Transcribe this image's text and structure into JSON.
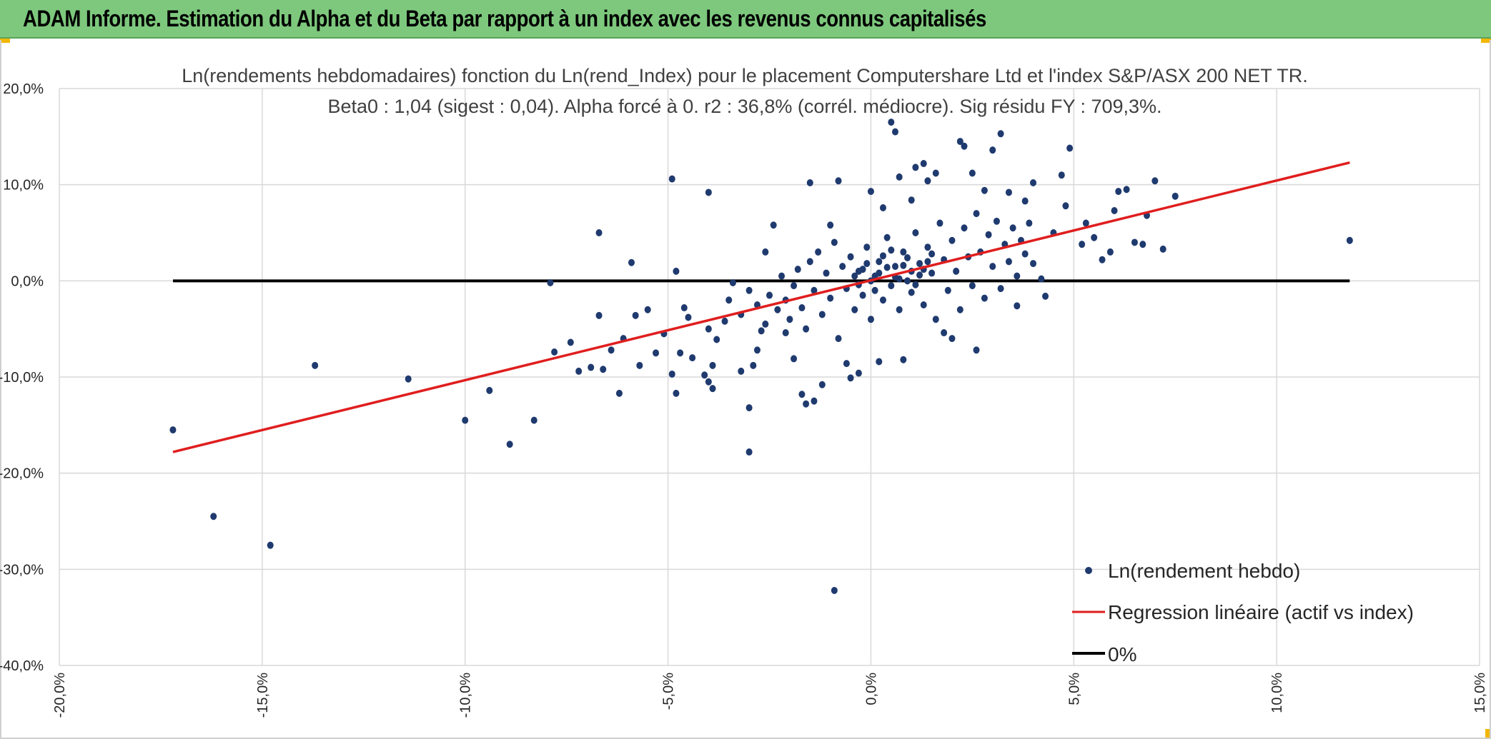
{
  "header": {
    "title": "ADAM Informe. Estimation du Alpha et du Beta par rapport à un index avec les revenus connus capitalisés"
  },
  "colors": {
    "banner": "#7dc87d",
    "points": "#1f3a6e",
    "regression": "#e01e1e",
    "zero_line": "#000000",
    "grid": "#d9d9d9"
  },
  "chart_data": {
    "type": "scatter",
    "title": "Ln(rendements hebdomadaires) fonction du Ln(rend_Index) pour le placement Computershare Ltd et l'index S&P/ASX 200 NET TR.",
    "subtitle": "Beta0 : 1,04 (sigest : 0,04). Alpha forcé à 0. r2 : 36,8% (corrél. médiocre). Sig résidu FY : 709,3%.",
    "xlabel": "",
    "ylabel": "",
    "xlim": [
      -0.2,
      0.15
    ],
    "ylim": [
      -0.4,
      0.2
    ],
    "x_ticks": [
      -0.2,
      -0.15,
      -0.1,
      -0.05,
      0.0,
      0.05,
      0.1,
      0.15
    ],
    "x_tick_labels": [
      "-20,0%",
      "-15,0%",
      "-10,0%",
      "-5,0%",
      "0,0%",
      "5,0%",
      "10,0%",
      "15,0%"
    ],
    "y_ticks": [
      -0.4,
      -0.3,
      -0.2,
      -0.1,
      0.0,
      0.1,
      0.2
    ],
    "y_tick_labels": [
      "-40,0%",
      "-30,0%",
      "-20,0%",
      "-10,0%",
      "0,0%",
      "10,0%",
      "20,0%"
    ],
    "grid": true,
    "legend_position": "bottom-right",
    "series": [
      {
        "name": "Ln(rendement hebdo)",
        "type": "scatter",
        "points": [
          [
            -0.172,
            -0.155
          ],
          [
            -0.162,
            -0.245
          ],
          [
            -0.148,
            -0.275
          ],
          [
            -0.137,
            -0.088
          ],
          [
            -0.114,
            -0.102
          ],
          [
            -0.1,
            -0.145
          ],
          [
            -0.094,
            -0.114
          ],
          [
            -0.089,
            -0.17
          ],
          [
            -0.083,
            -0.145
          ],
          [
            -0.079,
            -0.002
          ],
          [
            -0.078,
            -0.074
          ],
          [
            -0.074,
            -0.064
          ],
          [
            -0.072,
            -0.094
          ],
          [
            -0.069,
            -0.09
          ],
          [
            -0.067,
            0.05
          ],
          [
            -0.067,
            -0.036
          ],
          [
            -0.066,
            -0.092
          ],
          [
            -0.064,
            -0.072
          ],
          [
            -0.062,
            -0.117
          ],
          [
            -0.061,
            -0.06
          ],
          [
            -0.059,
            0.019
          ],
          [
            -0.058,
            -0.036
          ],
          [
            -0.057,
            -0.088
          ],
          [
            -0.055,
            -0.03
          ],
          [
            -0.053,
            -0.075
          ],
          [
            -0.051,
            -0.055
          ],
          [
            -0.049,
            -0.097
          ],
          [
            -0.048,
            0.01
          ],
          [
            -0.047,
            -0.075
          ],
          [
            -0.046,
            -0.028
          ],
          [
            -0.045,
            -0.038
          ],
          [
            -0.044,
            -0.08
          ],
          [
            -0.049,
            0.106
          ],
          [
            -0.048,
            -0.117
          ],
          [
            -0.041,
            -0.098
          ],
          [
            -0.04,
            -0.05
          ],
          [
            -0.039,
            -0.088
          ],
          [
            -0.038,
            -0.061
          ],
          [
            -0.036,
            -0.042
          ],
          [
            -0.034,
            -0.002
          ],
          [
            -0.04,
            0.092
          ],
          [
            -0.04,
            -0.105
          ],
          [
            -0.039,
            -0.112
          ],
          [
            -0.032,
            -0.094
          ],
          [
            -0.03,
            -0.132
          ],
          [
            -0.03,
            -0.178
          ],
          [
            -0.029,
            -0.088
          ],
          [
            -0.028,
            -0.072
          ],
          [
            -0.027,
            -0.052
          ],
          [
            -0.026,
            0.03
          ],
          [
            -0.024,
            0.058
          ],
          [
            -0.021,
            -0.054
          ],
          [
            -0.019,
            -0.081
          ],
          [
            -0.017,
            -0.118
          ],
          [
            -0.016,
            -0.128
          ],
          [
            -0.015,
            0.102
          ],
          [
            -0.014,
            -0.125
          ],
          [
            -0.012,
            -0.108
          ],
          [
            -0.01,
            0.058
          ],
          [
            -0.008,
            0.104
          ],
          [
            -0.006,
            -0.086
          ],
          [
            -0.005,
            -0.101
          ],
          [
            -0.009,
            -0.322
          ],
          [
            -0.003,
            -0.096
          ],
          [
            0.0,
            0.093
          ],
          [
            0.002,
            -0.084
          ],
          [
            0.003,
            0.076
          ],
          [
            0.005,
            0.165
          ],
          [
            0.006,
            0.155
          ],
          [
            0.007,
            0.108
          ],
          [
            0.008,
            -0.082
          ],
          [
            0.01,
            0.084
          ],
          [
            0.011,
            0.118
          ],
          [
            0.013,
            0.122
          ],
          [
            0.014,
            0.104
          ],
          [
            0.016,
            0.112
          ],
          [
            0.018,
            -0.054
          ],
          [
            0.02,
            -0.06
          ],
          [
            0.022,
            0.145
          ],
          [
            0.023,
            0.14
          ],
          [
            0.025,
            0.112
          ],
          [
            0.026,
            -0.072
          ],
          [
            0.028,
            0.094
          ],
          [
            0.03,
            0.136
          ],
          [
            0.032,
            0.153
          ],
          [
            0.034,
            0.092
          ],
          [
            0.036,
            -0.026
          ],
          [
            0.038,
            0.083
          ],
          [
            0.04,
            0.102
          ],
          [
            0.042,
            0.002
          ],
          [
            0.043,
            -0.016
          ],
          [
            0.045,
            0.05
          ],
          [
            0.047,
            0.11
          ],
          [
            0.048,
            0.078
          ],
          [
            0.049,
            0.138
          ],
          [
            0.052,
            0.038
          ],
          [
            0.053,
            0.06
          ],
          [
            0.055,
            0.045
          ],
          [
            0.057,
            0.022
          ],
          [
            0.059,
            0.03
          ],
          [
            0.06,
            0.073
          ],
          [
            0.061,
            0.093
          ],
          [
            0.063,
            0.095
          ],
          [
            0.065,
            0.04
          ],
          [
            0.067,
            0.038
          ],
          [
            0.068,
            0.068
          ],
          [
            0.07,
            0.104
          ],
          [
            0.072,
            0.033
          ],
          [
            0.075,
            0.088
          ],
          [
            0.118,
            0.042
          ],
          [
            -0.035,
            -0.02
          ],
          [
            -0.032,
            -0.035
          ],
          [
            -0.03,
            -0.01
          ],
          [
            -0.028,
            -0.025
          ],
          [
            -0.026,
            -0.045
          ],
          [
            -0.025,
            -0.015
          ],
          [
            -0.023,
            -0.03
          ],
          [
            -0.022,
            0.005
          ],
          [
            -0.021,
            -0.02
          ],
          [
            -0.02,
            -0.04
          ],
          [
            -0.019,
            -0.005
          ],
          [
            -0.018,
            0.012
          ],
          [
            -0.017,
            -0.028
          ],
          [
            -0.016,
            -0.05
          ],
          [
            -0.015,
            0.02
          ],
          [
            -0.014,
            -0.01
          ],
          [
            -0.013,
            0.03
          ],
          [
            -0.012,
            -0.035
          ],
          [
            -0.011,
            0.008
          ],
          [
            -0.01,
            -0.018
          ],
          [
            -0.009,
            0.04
          ],
          [
            -0.008,
            -0.06
          ],
          [
            -0.007,
            0.015
          ],
          [
            -0.006,
            -0.008
          ],
          [
            -0.005,
            0.025
          ],
          [
            -0.004,
            -0.03
          ],
          [
            -0.003,
            0.01
          ],
          [
            -0.002,
            -0.015
          ],
          [
            -0.001,
            0.035
          ],
          [
            0.0,
            -0.04
          ],
          [
            0.001,
            0.005
          ],
          [
            0.002,
            0.02
          ],
          [
            0.003,
            -0.02
          ],
          [
            0.004,
            0.045
          ],
          [
            0.005,
            -0.005
          ],
          [
            0.006,
            0.015
          ],
          [
            0.007,
            -0.03
          ],
          [
            0.008,
            0.03
          ],
          [
            0.009,
            0.0
          ],
          [
            0.01,
            -0.012
          ],
          [
            0.011,
            0.05
          ],
          [
            0.012,
            0.018
          ],
          [
            0.013,
            -0.025
          ],
          [
            0.014,
            0.035
          ],
          [
            0.015,
            0.008
          ],
          [
            0.016,
            -0.04
          ],
          [
            0.017,
            0.06
          ],
          [
            0.018,
            0.022
          ],
          [
            0.019,
            -0.01
          ],
          [
            0.02,
            0.042
          ],
          [
            0.021,
            0.01
          ],
          [
            0.022,
            -0.03
          ],
          [
            0.023,
            0.055
          ],
          [
            0.024,
            0.025
          ],
          [
            0.025,
            -0.005
          ],
          [
            0.026,
            0.07
          ],
          [
            0.027,
            0.03
          ],
          [
            0.028,
            -0.018
          ],
          [
            0.029,
            0.048
          ],
          [
            0.03,
            0.015
          ],
          [
            0.031,
            0.062
          ],
          [
            0.032,
            -0.008
          ],
          [
            0.033,
            0.038
          ],
          [
            0.034,
            0.02
          ],
          [
            0.035,
            0.055
          ],
          [
            0.036,
            0.005
          ],
          [
            0.037,
            0.042
          ],
          [
            0.038,
            0.028
          ],
          [
            0.039,
            0.06
          ],
          [
            0.04,
            0.018
          ],
          [
            -0.004,
            0.005
          ],
          [
            -0.002,
            0.012
          ],
          [
            0.0,
            0.0
          ],
          [
            0.002,
            0.008
          ],
          [
            0.004,
            0.014
          ],
          [
            0.006,
            0.004
          ],
          [
            0.008,
            0.016
          ],
          [
            0.01,
            0.01
          ],
          [
            0.012,
            0.006
          ],
          [
            0.014,
            0.02
          ],
          [
            -0.003,
            -0.004
          ],
          [
            -0.001,
            0.018
          ],
          [
            0.001,
            -0.01
          ],
          [
            0.003,
            0.026
          ],
          [
            0.005,
            0.032
          ],
          [
            0.007,
            0.002
          ],
          [
            0.009,
            0.024
          ],
          [
            0.011,
            -0.004
          ],
          [
            0.013,
            0.012
          ],
          [
            0.015,
            0.028
          ]
        ]
      },
      {
        "name": "Regression linéaire (actif vs index)",
        "type": "line",
        "points": [
          [
            -0.172,
            -0.178
          ],
          [
            0.118,
            0.123
          ]
        ]
      },
      {
        "name": "0%",
        "type": "line",
        "points": [
          [
            -0.172,
            0.0
          ],
          [
            0.118,
            0.0
          ]
        ]
      }
    ]
  }
}
